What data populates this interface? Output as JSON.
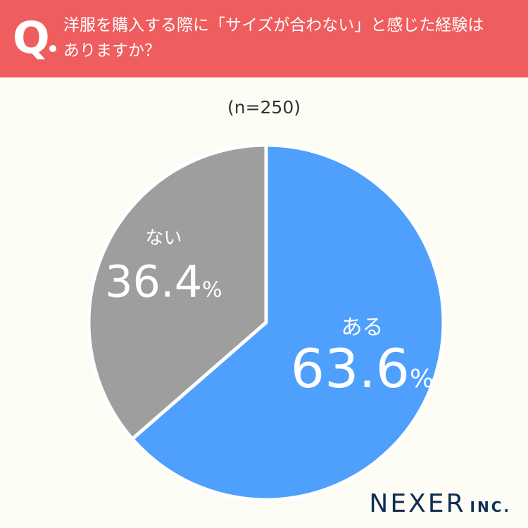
{
  "header": {
    "q_mark": "Q",
    "question_line1": "洋服を購入する際に「サイズが合わない」と感じた経験は",
    "question_line2": "ありますか？"
  },
  "chart_data": {
    "type": "pie",
    "sample_label": "(n=250)",
    "slices": [
      {
        "label": "ある",
        "percent_text": "63.6",
        "value": 63.6,
        "color": "#4fa0fc"
      },
      {
        "label": "ない",
        "percent_text": "36.4",
        "value": 36.4,
        "color": "#9e9e9e"
      }
    ],
    "percent_sign": "%",
    "start": "12 o'clock, clockwise"
  },
  "brand": {
    "name": "NEXER",
    "suffix": "INC."
  }
}
